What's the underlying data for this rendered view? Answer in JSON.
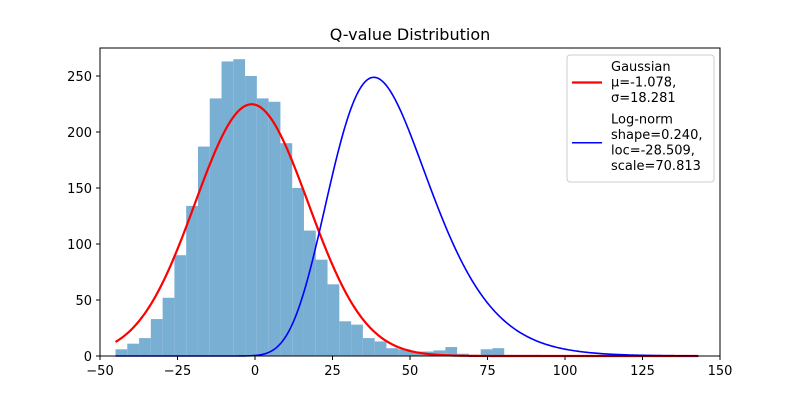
{
  "chart_data": {
    "type": "bar",
    "title": "Q-value Distribution",
    "xlabel": "",
    "ylabel": "",
    "xlim": [
      -50,
      150
    ],
    "ylim": [
      0,
      275
    ],
    "xticks": [
      -50,
      -25,
      0,
      25,
      50,
      75,
      100,
      125,
      150
    ],
    "xtick_labels": [
      "−50",
      "−25",
      "0",
      "25",
      "50",
      "75",
      "100",
      "125",
      "150"
    ],
    "yticks": [
      0,
      50,
      100,
      150,
      200,
      250
    ],
    "ytick_labels": [
      "0",
      "50",
      "100",
      "150",
      "200",
      "250"
    ],
    "grid": false,
    "legend_position": "top-right",
    "histogram": {
      "color": "#7aafd4",
      "bin_edges": [
        -45.0,
        -41.2,
        -37.4,
        -33.6,
        -29.8,
        -26.0,
        -22.2,
        -18.4,
        -14.6,
        -10.8,
        -7.0,
        -3.2,
        0.6,
        4.4,
        8.2,
        12.0,
        15.8,
        19.6,
        23.4,
        27.2,
        31.0,
        34.8,
        38.6,
        42.4,
        46.2,
        50.0,
        53.8,
        57.6,
        61.4,
        65.2,
        69.0,
        72.8,
        76.6,
        80.4,
        84.2,
        88.0,
        91.8,
        95.6,
        99.4,
        103.2,
        107.0,
        110.8,
        114.6,
        118.4,
        122.2,
        126.0,
        129.8,
        133.6,
        137.4,
        141.2,
        145.0
      ],
      "counts": [
        6,
        11,
        16,
        33,
        52,
        90,
        134,
        187,
        230,
        263,
        265,
        250,
        230,
        227,
        190,
        150,
        112,
        86,
        64,
        31,
        28,
        16,
        13,
        7,
        6,
        4,
        4,
        5,
        8,
        2,
        1,
        6,
        7,
        1,
        1,
        1,
        0,
        0,
        0,
        0,
        0,
        0,
        0,
        0,
        0,
        0,
        0,
        0,
        0,
        0
      ]
    },
    "series": [
      {
        "name": "Gaussian\nμ=-1.078,\nσ=18.281",
        "kind": "gaussian",
        "mu": -1.078,
        "sigma": 18.281,
        "color": "#ff0000",
        "x_range": [
          -45,
          143
        ]
      },
      {
        "name": "Log-norm\nshape=0.240,\nloc=-28.509,\nscale=70.813",
        "kind": "lognorm",
        "shape": 0.24,
        "loc": -28.509,
        "scale": 70.813,
        "color": "#0000ff",
        "x_range": [
          -45,
          143
        ]
      }
    ],
    "curve_scale": 10300
  }
}
